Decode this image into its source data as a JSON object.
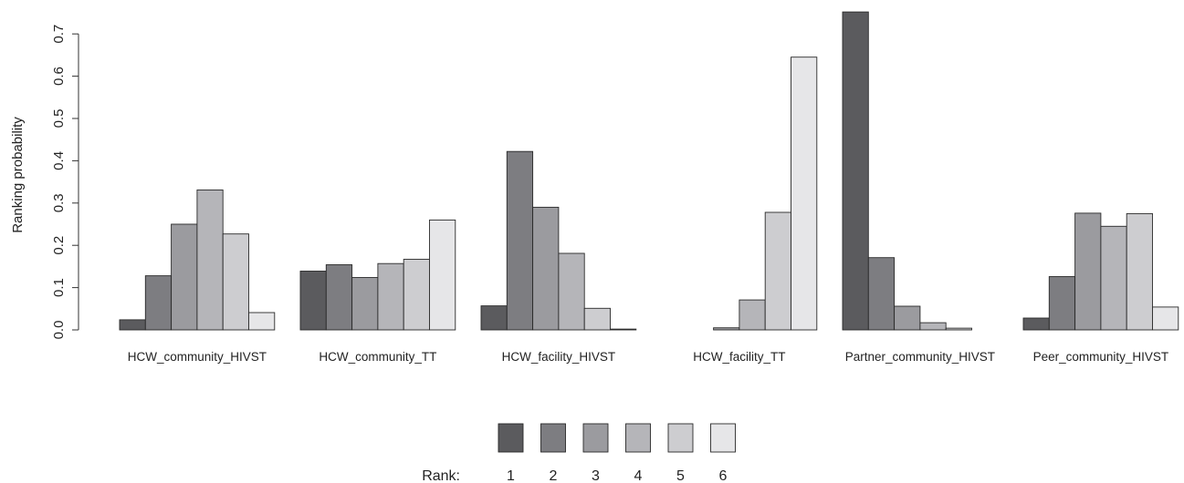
{
  "chart_data": {
    "type": "bar",
    "title": "",
    "xlabel": "",
    "ylabel": "Ranking probability",
    "ylim": [
      0,
      0.75
    ],
    "yticks": [
      "0.0",
      "0.1",
      "0.2",
      "0.3",
      "0.4",
      "0.5",
      "0.6",
      "0.7"
    ],
    "grid": false,
    "legend_position": "bottom",
    "legend_title": "Rank:",
    "categories": [
      "HCW_community_HIVST",
      "HCW_community_TT",
      "HCW_facility_HIVST",
      "HCW_facility_TT",
      "Partner_community_HIVST",
      "Peer_community_HIVST"
    ],
    "series": [
      {
        "name": "1",
        "color": "#5b5b5e",
        "values": [
          0.024,
          0.139,
          0.057,
          0.0,
          0.752,
          0.028
        ]
      },
      {
        "name": "2",
        "color": "#7d7d81",
        "values": [
          0.128,
          0.154,
          0.422,
          0.0,
          0.171,
          0.126
        ]
      },
      {
        "name": "3",
        "color": "#9b9b9f",
        "values": [
          0.25,
          0.124,
          0.29,
          0.005,
          0.056,
          0.276
        ]
      },
      {
        "name": "4",
        "color": "#b5b5b9",
        "values": [
          0.331,
          0.157,
          0.181,
          0.071,
          0.017,
          0.245
        ]
      },
      {
        "name": "5",
        "color": "#cdcdd0",
        "values": [
          0.227,
          0.167,
          0.051,
          0.278,
          0.004,
          0.275
        ]
      },
      {
        "name": "6",
        "color": "#e6e6e8",
        "values": [
          0.041,
          0.26,
          0.002,
          0.645,
          0.0,
          0.054
        ]
      }
    ]
  }
}
